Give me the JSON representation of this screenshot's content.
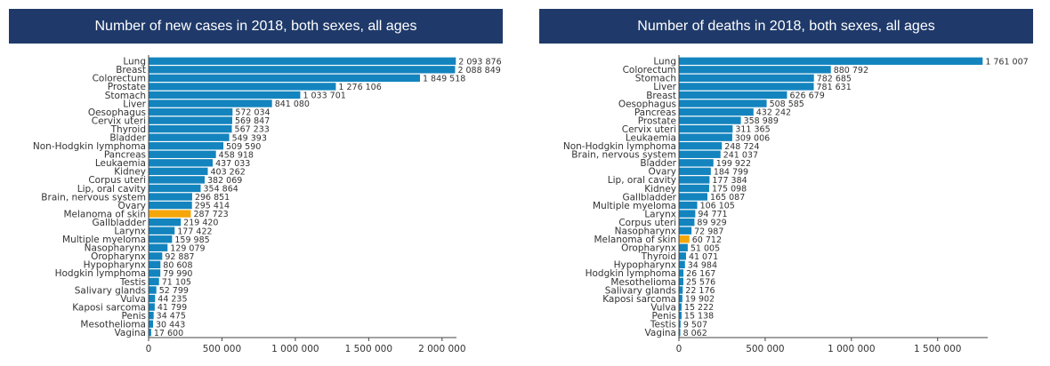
{
  "chart_data": [
    {
      "type": "bar",
      "orientation": "horizontal",
      "title": "Number of new cases in 2018, both sexes, all ages",
      "xlabel": "",
      "ylabel": "",
      "xlim": [
        0,
        2450000
      ],
      "xticks": [
        0,
        500000,
        1000000,
        1500000,
        2000000
      ],
      "xtick_labels": [
        "0",
        "500 000",
        "1 000 000",
        "1 500 000",
        "2 000 000"
      ],
      "bar_color": "#1384be",
      "highlight_color": "#f5a60a",
      "highlight_category": "Melanoma of skin",
      "categories": [
        "Lung",
        "Breast",
        "Colorectum",
        "Prostate",
        "Stomach",
        "Liver",
        "Oesophagus",
        "Cervix uteri",
        "Thyroid",
        "Bladder",
        "Non-Hodgkin lymphoma",
        "Pancreas",
        "Leukaemia",
        "Kidney",
        "Corpus uteri",
        "Lip, oral cavity",
        "Brain, nervous system",
        "Ovary",
        "Melanoma of skin",
        "Gallbladder",
        "Larynx",
        "Multiple myeloma",
        "Nasopharynx",
        "Oropharynx",
        "Hypopharynx",
        "Hodgkin lymphoma",
        "Testis",
        "Salivary glands",
        "Vulva",
        "Kaposi sarcoma",
        "Penis",
        "Mesothelioma",
        "Vagina"
      ],
      "values": [
        2093876,
        2088849,
        1849518,
        1276106,
        1033701,
        841080,
        572034,
        569847,
        567233,
        549393,
        509590,
        458918,
        437033,
        403262,
        382069,
        354864,
        296851,
        295414,
        287723,
        219420,
        177422,
        159985,
        129079,
        92887,
        80608,
        79990,
        71105,
        52799,
        44235,
        41799,
        34475,
        30443,
        17600
      ],
      "value_labels": [
        "2 093 876",
        "2 088 849",
        "1 849 518",
        "1 276 106",
        "1 033 701",
        "841 080",
        "572 034",
        "569 847",
        "567 233",
        "549 393",
        "509 590",
        "458 918",
        "437 033",
        "403 262",
        "382 069",
        "354 864",
        "296 851",
        "295 414",
        "287 723",
        "219 420",
        "177 422",
        "159 985",
        "129 079",
        "92 887",
        "80 608",
        "79 990",
        "71 105",
        "52 799",
        "44 235",
        "41 799",
        "34 475",
        "30 443",
        "17 600"
      ]
    },
    {
      "type": "bar",
      "orientation": "horizontal",
      "title": "Number of deaths in 2018, both sexes, all ages",
      "xlabel": "",
      "ylabel": "",
      "xlim": [
        0,
        1780000
      ],
      "xticks": [
        0,
        500000,
        1000000,
        1500000
      ],
      "xtick_labels": [
        "0",
        "500 000",
        "1 000 000",
        "1 500 000"
      ],
      "bar_color": "#1384be",
      "highlight_color": "#f5a60a",
      "highlight_category": "Melanoma of skin",
      "categories": [
        "Lung",
        "Colorectum",
        "Stomach",
        "Liver",
        "Breast",
        "Oesophagus",
        "Pancreas",
        "Prostate",
        "Cervix uteri",
        "Leukaemia",
        "Non-Hodgkin lymphoma",
        "Brain, nervous system",
        "Bladder",
        "Ovary",
        "Lip, oral cavity",
        "Kidney",
        "Gallbladder",
        "Multiple myeloma",
        "Larynx",
        "Corpus uteri",
        "Nasopharynx",
        "Melanoma of skin",
        "Oropharynx",
        "Thyroid",
        "Hypopharynx",
        "Hodgkin lymphoma",
        "Mesothelioma",
        "Salivary glands",
        "Kaposi sarcoma",
        "Vulva",
        "Penis",
        "Testis",
        "Vagina"
      ],
      "values": [
        1761007,
        880792,
        782685,
        781631,
        626679,
        508585,
        432242,
        358989,
        311365,
        309006,
        248724,
        241037,
        199922,
        184799,
        177384,
        175098,
        165087,
        106105,
        94771,
        89929,
        72987,
        60712,
        51005,
        41071,
        34984,
        26167,
        25576,
        22176,
        19902,
        15222,
        15138,
        9507,
        8062
      ],
      "value_labels": [
        "1 761 007",
        "880 792",
        "782 685",
        "781 631",
        "626 679",
        "508 585",
        "432 242",
        "358 989",
        "311 365",
        "309 006",
        "248 724",
        "241 037",
        "199 922",
        "184 799",
        "177 384",
        "175 098",
        "165 087",
        "106 105",
        "94 771",
        "89 929",
        "72 987",
        "60 712",
        "51 005",
        "41 071",
        "34 984",
        "26 167",
        "25 576",
        "22 176",
        "19 902",
        "15 222",
        "15 138",
        "9 507",
        "8 062"
      ]
    }
  ]
}
